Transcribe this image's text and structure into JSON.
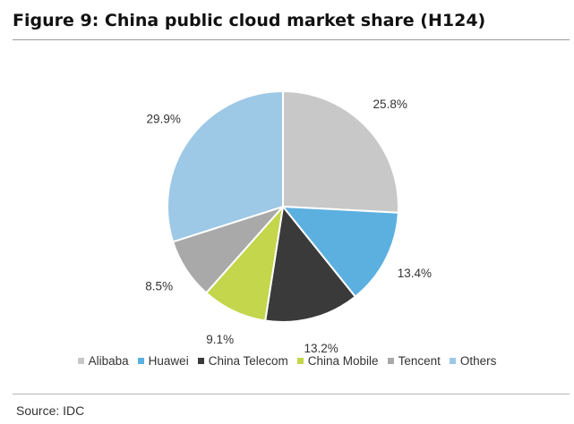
{
  "page": {
    "title": "Figure 9: China public cloud market share (H124)",
    "source": "Source: IDC"
  },
  "chart_data": {
    "type": "pie",
    "title": "Figure 9: China public cloud market share (H124)",
    "legend_position": "bottom",
    "start_angle": "12 o'clock, clockwise",
    "slices": [
      {
        "name": "Alibaba",
        "value": 25.8,
        "label": "25.8%",
        "color": "#c8c8c8"
      },
      {
        "name": "Huawei",
        "value": 13.4,
        "label": "13.4%",
        "color": "#5cb0e0"
      },
      {
        "name": "China Telecom",
        "value": 13.2,
        "label": "13.2%",
        "color": "#3a3a3a"
      },
      {
        "name": "China Mobile",
        "value": 9.1,
        "label": "9.1%",
        "color": "#c3d64c"
      },
      {
        "name": "Tencent",
        "value": 8.5,
        "label": "8.5%",
        "color": "#a9a9a9"
      },
      {
        "name": "Others",
        "value": 29.9,
        "label": "29.9%",
        "color": "#9dc8e6"
      }
    ]
  }
}
